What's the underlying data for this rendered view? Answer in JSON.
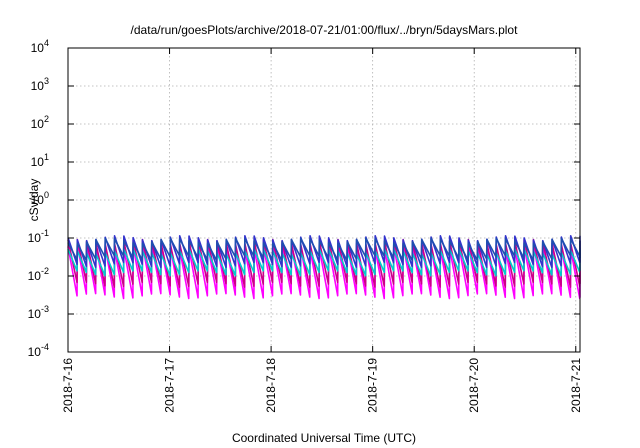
{
  "chart_data": {
    "type": "line",
    "title": "/data/run/goesPlots/archive/2018-07-21/01:00/flux/../bryn/5daysMars.plot",
    "xlabel": "Coordinated Universal Time (UTC)",
    "ylabel": "cSv/day",
    "yscale": "log",
    "ylim": [
      0.0001,
      10000
    ],
    "yticks": [
      {
        "base": "10",
        "exp": "-4",
        "value": 0.0001
      },
      {
        "base": "10",
        "exp": "-3",
        "value": 0.001
      },
      {
        "base": "10",
        "exp": "-2",
        "value": 0.01
      },
      {
        "base": "10",
        "exp": "-1",
        "value": 0.1
      },
      {
        "base": "10",
        "exp": "0",
        "value": 1
      },
      {
        "base": "10",
        "exp": "1",
        "value": 10
      },
      {
        "base": "10",
        "exp": "2",
        "value": 100
      },
      {
        "base": "10",
        "exp": "3",
        "value": 1000
      },
      {
        "base": "10",
        "exp": "4",
        "value": 10000
      }
    ],
    "xlim": [
      "2018-07-16",
      "2018-07-21 01:00"
    ],
    "xticks": [
      {
        "label": "2018-7-16",
        "value": "2018-07-16"
      },
      {
        "label": "2018-7-17",
        "value": "2018-07-17"
      },
      {
        "label": "2018-7-18",
        "value": "2018-07-18"
      },
      {
        "label": "2018-7-19",
        "value": "2018-07-19"
      },
      {
        "label": "2018-7-20",
        "value": "2018-07-20"
      },
      {
        "label": "2018-7-21",
        "value": "2018-07-21"
      }
    ],
    "grid": true,
    "sawtooth_period_hours": 2.2,
    "series": [
      {
        "color": "#ff00ff",
        "peak": 0.06,
        "trough": 0.003
      },
      {
        "color": "#cc0088",
        "peak": 0.08,
        "trough": 0.006
      },
      {
        "color": "#00cccc",
        "peak": 0.045,
        "trough": 0.012
      },
      {
        "color": "#3333cc",
        "peak": 0.1,
        "trough": 0.02
      },
      {
        "color": "#1f4fb0",
        "peak": 0.085,
        "trough": 0.03
      }
    ]
  }
}
